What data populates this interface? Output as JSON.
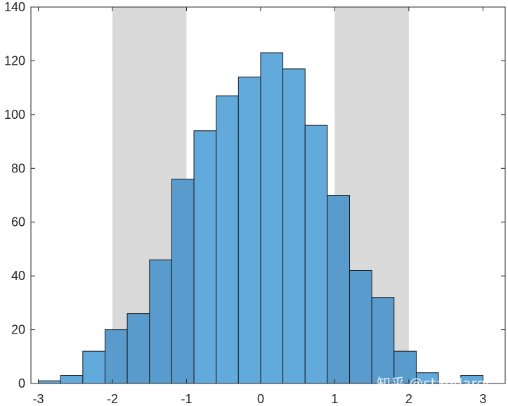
{
  "chart_data": {
    "type": "bar",
    "bin_width": 0.3,
    "bins": [
      {
        "start": -3.3,
        "end": -3.0,
        "count": 0
      },
      {
        "start": -3.0,
        "end": -2.7,
        "count": 1
      },
      {
        "start": -2.7,
        "end": -2.4,
        "count": 3
      },
      {
        "start": -2.4,
        "end": -2.1,
        "count": 12
      },
      {
        "start": -2.1,
        "end": -1.8,
        "count": 20
      },
      {
        "start": -1.8,
        "end": -1.5,
        "count": 26
      },
      {
        "start": -1.5,
        "end": -1.2,
        "count": 46
      },
      {
        "start": -1.2,
        "end": -0.9,
        "count": 76
      },
      {
        "start": -0.9,
        "end": -0.6,
        "count": 94
      },
      {
        "start": -0.6,
        "end": -0.3,
        "count": 107
      },
      {
        "start": -0.3,
        "end": 0.0,
        "count": 114
      },
      {
        "start": 0.0,
        "end": 0.3,
        "count": 123
      },
      {
        "start": 0.3,
        "end": 0.6,
        "count": 117
      },
      {
        "start": 0.6,
        "end": 0.9,
        "count": 96
      },
      {
        "start": 0.9,
        "end": 1.2,
        "count": 70
      },
      {
        "start": 1.2,
        "end": 1.5,
        "count": 42
      },
      {
        "start": 1.5,
        "end": 1.8,
        "count": 32
      },
      {
        "start": 1.8,
        "end": 2.1,
        "count": 12
      },
      {
        "start": 2.1,
        "end": 2.4,
        "count": 4
      },
      {
        "start": 2.4,
        "end": 2.7,
        "count": 0
      },
      {
        "start": 2.7,
        "end": 3.0,
        "count": 3
      }
    ],
    "shaded_regions": [
      {
        "start": -2,
        "end": -1
      },
      {
        "start": 1,
        "end": 2
      }
    ],
    "xlim": [
      -3.1,
      3.3
    ],
    "ylim": [
      0,
      140
    ],
    "x_ticks": [
      {
        "value": -3,
        "label": "-3"
      },
      {
        "value": -2,
        "label": "-2"
      },
      {
        "value": -1,
        "label": "-1"
      },
      {
        "value": 0,
        "label": "0"
      },
      {
        "value": 1,
        "label": "1"
      },
      {
        "value": 2,
        "label": "2"
      },
      {
        "value": 3,
        "label": "3"
      }
    ],
    "y_ticks": [
      {
        "value": 0,
        "label": "0"
      },
      {
        "value": 20,
        "label": "20"
      },
      {
        "value": 40,
        "label": "40"
      },
      {
        "value": 60,
        "label": "60"
      },
      {
        "value": 80,
        "label": "80"
      },
      {
        "value": 100,
        "label": "100"
      },
      {
        "value": 120,
        "label": "120"
      },
      {
        "value": 140,
        "label": "140"
      }
    ],
    "grid": false,
    "colors": {
      "bar_fill": "#62a9dc",
      "bar_fill_in_shade": "#589bcc",
      "bar_edge": "#1a1a1a",
      "shade": "#d9d9d9",
      "axis": "#262626"
    }
  },
  "watermark": {
    "text": "知乎 @standarer"
  }
}
